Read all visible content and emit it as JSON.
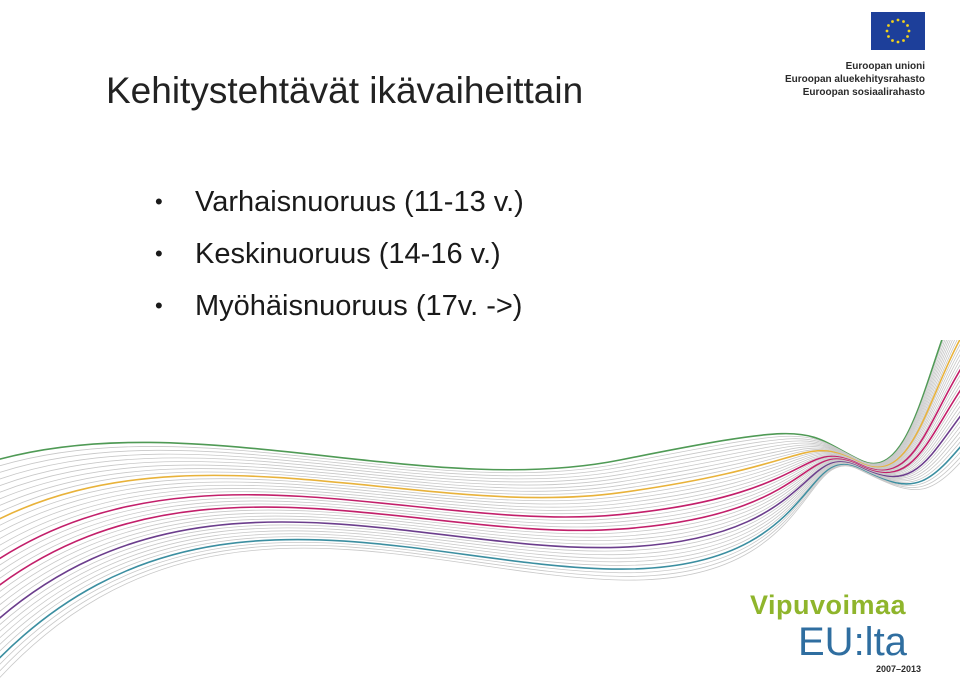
{
  "slide": {
    "title": "Kehitystehtävät ikävaiheittain",
    "bullets": [
      {
        "text": "Varhaisnuoruus (11-13 v.)"
      },
      {
        "text": "Keskinuoruus (14-16 v.)"
      },
      {
        "text": "Myöhäisnuoruus (17v. ->)"
      }
    ],
    "bullet_glyph": "•"
  },
  "eu_logo": {
    "lines": [
      "Euroopan unioni",
      "Euroopan aluekehitysrahasto",
      "Euroopan sosiaalirahasto"
    ],
    "flag_color": "#1d3f9a",
    "star_color": "#f2d21b"
  },
  "branding": {
    "vipuvoimaa": "Vipuvoimaa",
    "eulta": "EU:lta",
    "years": "2007–2013"
  },
  "colors": {
    "green": "#4f9a55",
    "yellow": "#e8b23a",
    "magenta": "#c21f6a",
    "purple": "#6b3d8c",
    "teal": "#3b8ea0",
    "grey": "#c8c8c8"
  }
}
